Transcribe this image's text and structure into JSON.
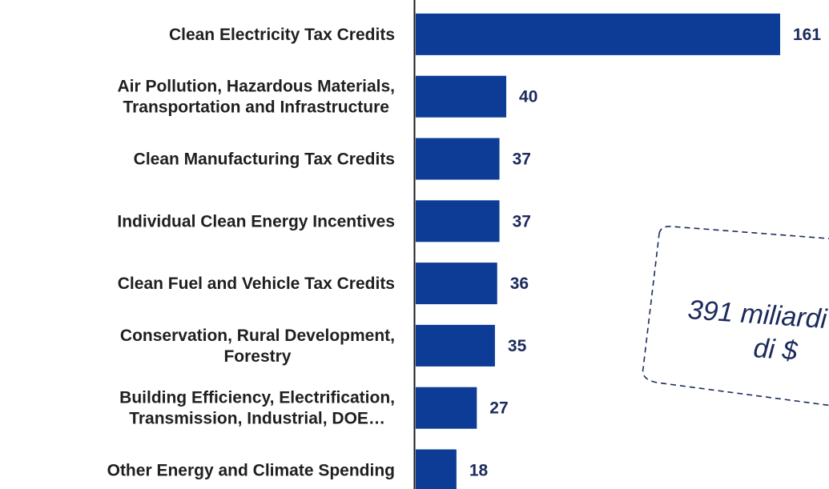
{
  "chart_data": {
    "type": "bar",
    "orientation": "horizontal",
    "categories": [
      [
        "Clean Electricity Tax Credits"
      ],
      [
        "Air Pollution, Hazardous Materials,",
        "Transportation and Infrastructure"
      ],
      [
        "Clean Manufacturing Tax Credits"
      ],
      [
        "Individual Clean Energy Incentives"
      ],
      [
        "Clean Fuel and Vehicle Tax Credits"
      ],
      [
        "Conservation, Rural Development,",
        "Forestry"
      ],
      [
        "Building Efficiency, Electrification,",
        "Transmission, Industrial, DOE…"
      ],
      [
        "Other Energy and Climate Spending"
      ]
    ],
    "values": [
      161,
      40,
      37,
      37,
      36,
      35,
      27,
      18
    ],
    "value_labels": [
      "161",
      "40",
      "37",
      "37",
      "36",
      "35",
      "27",
      "18"
    ],
    "xlim": [
      0,
      170
    ],
    "bar_color": "#0c3c96",
    "value_label_color": "#1b2a5c",
    "grid": false,
    "legend": "none"
  },
  "callout": {
    "lines": [
      "391 miliardi",
      "di $"
    ],
    "border_style": "dashed",
    "text_color": "#1b2a5c"
  }
}
